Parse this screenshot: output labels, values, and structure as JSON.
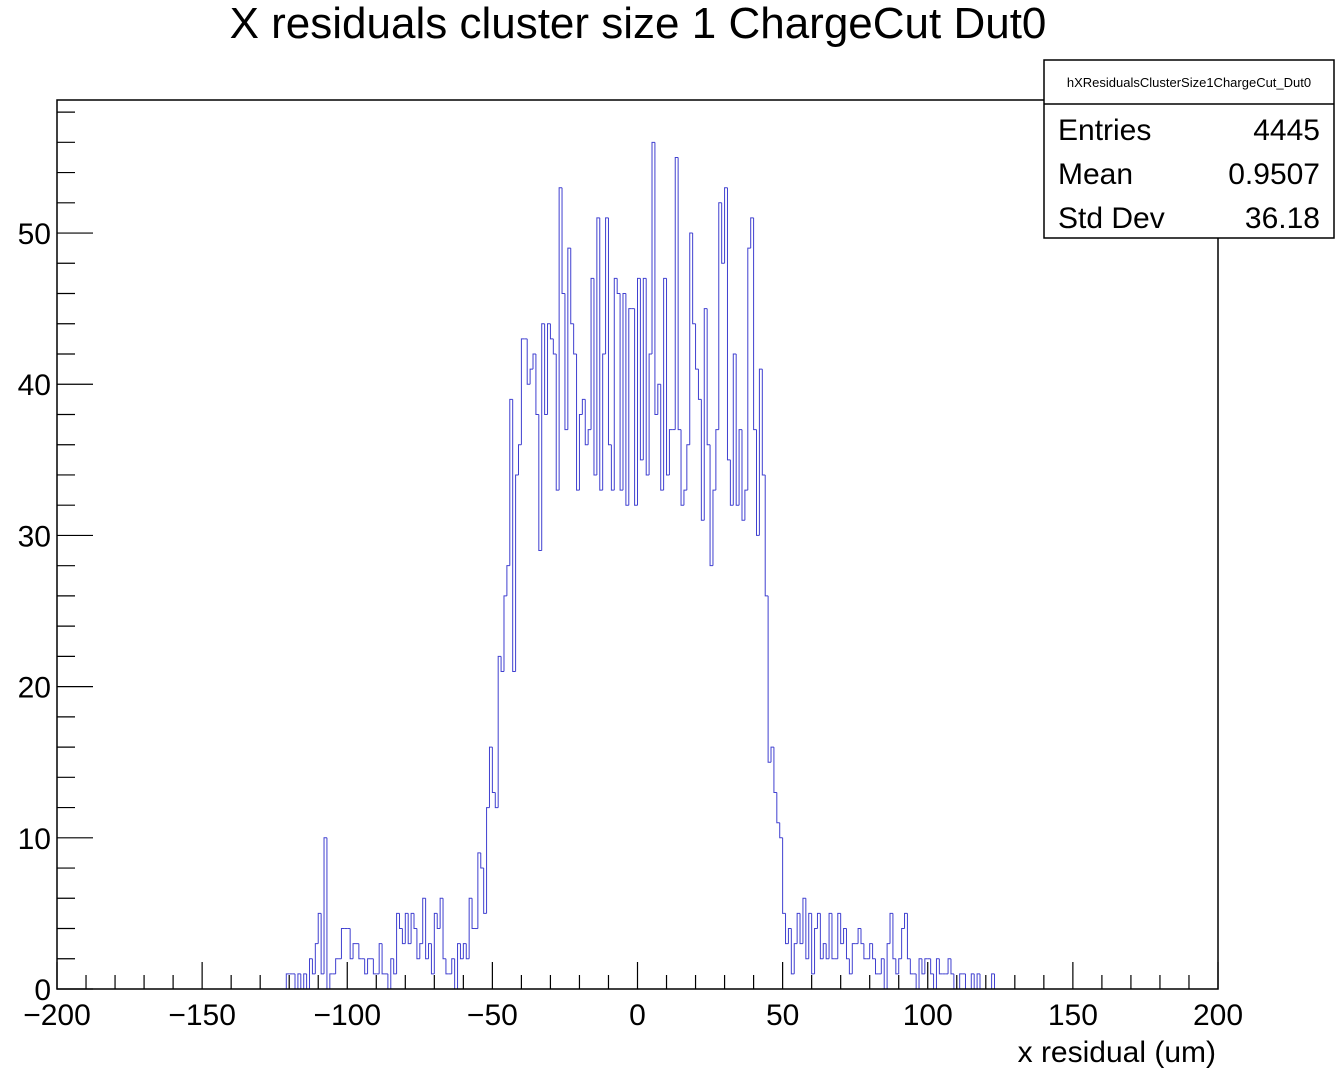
{
  "chart_data": {
    "type": "histogram",
    "title": "X residuals cluster size 1 ChargeCut Dut0",
    "x_label": "x residual (um)",
    "color": "#4040d0",
    "xlim": [
      -200,
      200
    ],
    "ylim": [
      0,
      58.8
    ],
    "xticks": [
      {
        "value": -200,
        "label": "−200"
      },
      {
        "value": -150,
        "label": "−150"
      },
      {
        "value": -100,
        "label": "−100"
      },
      {
        "value": -50,
        "label": "−50"
      },
      0,
      50,
      100,
      150,
      200
    ],
    "yticks": [
      0,
      10,
      20,
      30,
      40,
      50
    ],
    "stats": {
      "name": "hXResidualsClusterSize1ChargeCut_Dut0",
      "rows": [
        {
          "label": "Entries",
          "value": 4445
        },
        {
          "label": "Mean",
          "value": 0.9507
        },
        {
          "label": "Std Dev",
          "value": 36.18
        }
      ]
    },
    "bins": [
      -200,
      -199,
      -198,
      -197,
      -196,
      -195,
      -194,
      -193,
      -192,
      -191,
      -190,
      -189,
      -188,
      -187,
      -186,
      -185,
      -184,
      -183,
      -182,
      -181,
      -180,
      -179,
      -178,
      -177,
      -176,
      -175,
      -174,
      -173,
      -172,
      -171,
      -170,
      -169,
      -168,
      -167,
      -166,
      -165,
      -164,
      -163,
      -162,
      -161,
      -160,
      -159,
      -158,
      -157,
      -156,
      -155,
      -154,
      -153,
      -152,
      -151,
      -150,
      -149,
      -148,
      -147,
      -146,
      -145,
      -144,
      -143,
      -142,
      -141,
      -140,
      -139,
      -138,
      -137,
      -136,
      -135,
      -134,
      -133,
      -132,
      -131,
      -130,
      -129,
      -128,
      -127,
      -126,
      -125,
      -124,
      -123,
      -122,
      -121,
      -120,
      -119,
      -118,
      -117,
      -116,
      -115,
      -114,
      -113,
      -112,
      -111,
      -110,
      -109,
      -108,
      -107,
      -106,
      -105,
      -104,
      -103,
      -102,
      -101,
      -100,
      -99,
      -98,
      -97,
      -96,
      -95,
      -94,
      -93,
      -92,
      -91,
      -90,
      -89,
      -88,
      -87,
      -86,
      -85,
      -84,
      -83,
      -82,
      -81,
      -80,
      -79,
      -78,
      -77,
      -76,
      -75,
      -74,
      -73,
      -72,
      -71,
      -70,
      -69,
      -68,
      -67,
      -66,
      -65,
      -64,
      -63,
      -62,
      -61,
      -60,
      -59,
      -58,
      -57,
      -56,
      -55,
      -54,
      -53,
      -52,
      -51,
      -50,
      -49,
      -48,
      -47,
      -46,
      -45,
      -44,
      -43,
      -42,
      -41,
      -40,
      -39,
      -38,
      -37,
      -36,
      -35,
      -34,
      -33,
      -32,
      -31,
      -30,
      -29,
      -28,
      -27,
      -26,
      -25,
      -24,
      -23,
      -22,
      -21,
      -20,
      -19,
      -18,
      -17,
      -16,
      -15,
      -14,
      -13,
      -12,
      -11,
      -10,
      -9,
      -8,
      -7,
      -6,
      -5,
      -4,
      -3,
      -2,
      -1,
      0,
      1,
      2,
      3,
      4,
      5,
      6,
      7,
      8,
      9,
      10,
      11,
      12,
      13,
      14,
      15,
      16,
      17,
      18,
      19,
      20,
      21,
      22,
      23,
      24,
      25,
      26,
      27,
      28,
      29,
      30,
      31,
      32,
      33,
      34,
      35,
      36,
      37,
      38,
      39,
      40,
      41,
      42,
      43,
      44,
      45,
      46,
      47,
      48,
      49,
      50,
      51,
      52,
      53,
      54,
      55,
      56,
      57,
      58,
      59,
      60,
      61,
      62,
      63,
      64,
      65,
      66,
      67,
      68,
      69,
      70,
      71,
      72,
      73,
      74,
      75,
      76,
      77,
      78,
      79,
      80,
      81,
      82,
      83,
      84,
      85,
      86,
      87,
      88,
      89,
      90,
      91,
      92,
      93,
      94,
      95,
      96,
      97,
      98,
      99,
      100,
      101,
      102,
      103,
      104,
      105,
      106,
      107,
      108,
      109,
      110,
      111,
      112,
      113,
      114,
      115,
      116,
      117,
      118,
      119,
      120,
      121,
      122,
      123,
      124,
      125,
      126,
      127,
      128,
      129,
      130,
      131,
      132,
      133,
      134,
      135,
      136,
      137,
      138,
      139,
      140,
      141,
      142,
      143,
      144,
      145,
      146,
      147,
      148,
      149,
      150,
      151,
      152,
      153,
      154,
      155,
      156,
      157,
      158,
      159,
      160,
      161,
      162,
      163,
      164,
      165,
      166,
      167,
      168,
      169,
      170,
      171,
      172,
      173,
      174,
      175,
      176,
      177,
      178,
      179,
      180,
      181,
      182,
      183,
      184,
      185,
      186,
      187,
      188,
      189,
      190,
      191,
      192,
      193,
      194,
      195,
      196,
      197,
      198,
      199,
      200
    ],
    "values": [
      0,
      0,
      0,
      0,
      0,
      0,
      0,
      0,
      0,
      0,
      0,
      0,
      0,
      0,
      0,
      0,
      0,
      0,
      0,
      0,
      0,
      0,
      0,
      0,
      0,
      0,
      0,
      0,
      0,
      0,
      0,
      0,
      0,
      0,
      0,
      0,
      0,
      0,
      0,
      0,
      0,
      0,
      0,
      0,
      0,
      0,
      0,
      0,
      0,
      0,
      0,
      0,
      0,
      0,
      0,
      0,
      0,
      0,
      0,
      0,
      0,
      0,
      0,
      0,
      0,
      0,
      0,
      0,
      0,
      0,
      0,
      0,
      0,
      0,
      0,
      0,
      0,
      0,
      0,
      1,
      1,
      1,
      0,
      1,
      0,
      1,
      0,
      2,
      1,
      3,
      5,
      1,
      10,
      0,
      1,
      1,
      2,
      2,
      4,
      4,
      4,
      2,
      3,
      3,
      2,
      2,
      1,
      2,
      2,
      1,
      1,
      3,
      1,
      1,
      0,
      2,
      1,
      5,
      4,
      3,
      5,
      3,
      5,
      4,
      2,
      3,
      6,
      2,
      3,
      1,
      5,
      4,
      6,
      2,
      1,
      1,
      2,
      0,
      3,
      2,
      3,
      2,
      6,
      4,
      4,
      9,
      8,
      5,
      12,
      16,
      13,
      12,
      22,
      21,
      26,
      28,
      39,
      21,
      34,
      36,
      43,
      43,
      40,
      41,
      42,
      38,
      29,
      44,
      38,
      44,
      43,
      42,
      33,
      53,
      46,
      37,
      49,
      44,
      42,
      33,
      38,
      39,
      36,
      37,
      47,
      34,
      51,
      33,
      42,
      51,
      36,
      33,
      47,
      46,
      33,
      46,
      32,
      45,
      45,
      32,
      47,
      35,
      47,
      34,
      42,
      56,
      38,
      40,
      33,
      47,
      34,
      37,
      37,
      55,
      37,
      32,
      33,
      36,
      50,
      44,
      41,
      39,
      31,
      45,
      36,
      28,
      33,
      37,
      52,
      48,
      53,
      35,
      32,
      42,
      32,
      37,
      31,
      33,
      49,
      51,
      37,
      30,
      41,
      34,
      26,
      15,
      16,
      13,
      11,
      10,
      5,
      3,
      4,
      1,
      3,
      5,
      3,
      6,
      2,
      5,
      1,
      4,
      5,
      2,
      3,
      2,
      5,
      2,
      2,
      5,
      3,
      4,
      2,
      1,
      3,
      3,
      4,
      3,
      2,
      2,
      3,
      2,
      1,
      1,
      2,
      0,
      3,
      5,
      2,
      1,
      2,
      4,
      5,
      2,
      1,
      1,
      0,
      2,
      1,
      2,
      2,
      1,
      0,
      2,
      1,
      1,
      1,
      2,
      1,
      0,
      0,
      1,
      1,
      0,
      0,
      1,
      0,
      1,
      0,
      0,
      0,
      0,
      1,
      0,
      0,
      0,
      0,
      0,
      0,
      0,
      0,
      0,
      0,
      0,
      0,
      0,
      0,
      0,
      0,
      0,
      0,
      0,
      0,
      0,
      0,
      0,
      0,
      0,
      0,
      0,
      0,
      0,
      0,
      0,
      0,
      0,
      0,
      0,
      0,
      0,
      0,
      0,
      0,
      0,
      0,
      0,
      0,
      0,
      0,
      0,
      0,
      0,
      0,
      0,
      0,
      0,
      0,
      0,
      0,
      0,
      0,
      0,
      0,
      0,
      0,
      0,
      0,
      0,
      0,
      0,
      0,
      0,
      0,
      0,
      0,
      0,
      0,
      0,
      0,
      0
    ]
  }
}
